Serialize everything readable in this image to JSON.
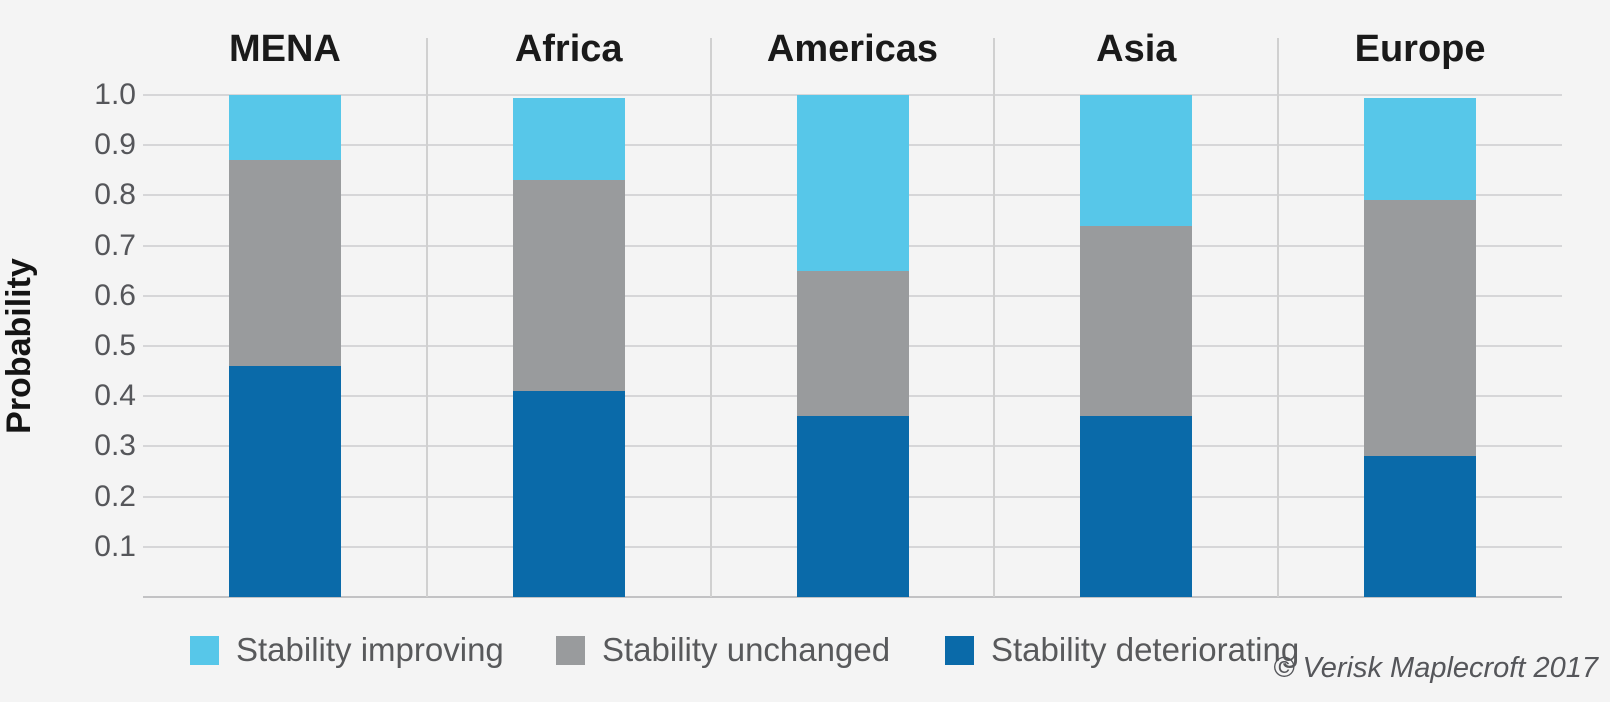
{
  "chart_data": {
    "type": "bar",
    "stacked": true,
    "title": "",
    "xlabel": "",
    "ylabel": "Probability",
    "ylim": [
      0,
      1.0
    ],
    "yticks": [
      1.0,
      0.9,
      0.8,
      0.7,
      0.6,
      0.5,
      0.4,
      0.3,
      0.2,
      0.1
    ],
    "grid": true,
    "legend_position": "bottom",
    "categories": [
      "MENA",
      "Africa",
      "Americas",
      "Asia",
      "Europe"
    ],
    "series": [
      {
        "name": "Stability improving",
        "color": "#57c7e9",
        "values": [
          0.13,
          0.165,
          0.35,
          0.26,
          0.205
        ]
      },
      {
        "name": "Stability unchanged",
        "color": "#999b9d",
        "values": [
          0.41,
          0.42,
          0.29,
          0.38,
          0.51
        ]
      },
      {
        "name": "Stability deteriorating",
        "color": "#0a6aa9",
        "values": [
          0.46,
          0.41,
          0.36,
          0.36,
          0.28
        ]
      }
    ]
  },
  "footer": {
    "copyright": "© Verisk Maplecroft 2017"
  },
  "colors": {
    "background": "#f4f4f4",
    "gridline": "#d6d6d8",
    "axis_line": "#c2c2c4",
    "panel_separator": "#d0d0d0",
    "header_text": "#1a1a1a",
    "tick_text": "#55565a",
    "legend_text": "#58595b"
  }
}
